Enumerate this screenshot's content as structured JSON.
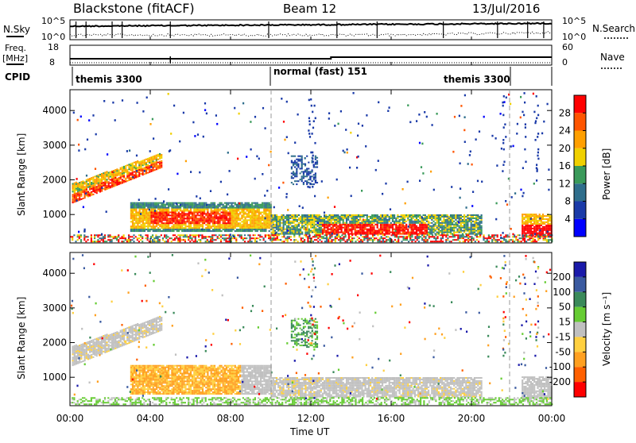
{
  "header": {
    "radar": "Blackstone (fitACF)",
    "beam": "Beam 12",
    "date": "13/Jul/2016"
  },
  "panels": {
    "nsky_label": "N.Sky",
    "nsearch_label": "N.Search",
    "nsky_ticks": [
      "10^5",
      "10^0"
    ],
    "nsearch_ticks": [
      "10^5",
      "10^0"
    ],
    "freq_label": "Freq.",
    "freq_unit": "[MHz]",
    "freq_ticks": [
      "18",
      "8"
    ],
    "nave_label": "Nave",
    "nave_ticks": [
      "60",
      "0"
    ],
    "cpid_label": "CPID",
    "cpid_segments": [
      "themis 3300",
      "normal (fast) 151",
      "themis 3300"
    ]
  },
  "colors": {
    "power": [
      "#0000ff",
      "#1a3aa8",
      "#2f6e8c",
      "#3a9a5a",
      "#f0d000",
      "#ff9f00",
      "#ff5500",
      "#ff0000"
    ],
    "velocity": [
      "#1a1aaa",
      "#3a5aa0",
      "#3a8a5a",
      "#66cc33",
      "#c0c0c0",
      "#ffd040",
      "#ffa020",
      "#ff6000",
      "#ff0000"
    ]
  },
  "chart_data": [
    {
      "type": "heatmap",
      "name": "power",
      "xlabel": "",
      "ylabel": "Slant Range [km]",
      "x_ticks": [
        "00:00",
        "04:00",
        "08:00",
        "12:00",
        "16:00",
        "20:00",
        "00:00"
      ],
      "y_ticks": [
        1000,
        2000,
        3000,
        4000
      ],
      "ylim": [
        180,
        4600
      ],
      "colorbar_label": "Power [dB]",
      "colorbar_ticks": [
        4,
        8,
        12,
        16,
        20,
        24,
        28
      ],
      "colorbar_range": [
        0,
        32
      ]
    },
    {
      "type": "heatmap",
      "name": "velocity",
      "xlabel": "Time UT",
      "ylabel": "Slant Range [km]",
      "x_ticks": [
        "00:00",
        "04:00",
        "08:00",
        "12:00",
        "16:00",
        "20:00",
        "00:00"
      ],
      "y_ticks": [
        1000,
        2000,
        3000,
        4000
      ],
      "ylim": [
        180,
        4600
      ],
      "colorbar_label": "Velocity [m s⁻¹]",
      "colorbar_ticks": [
        200,
        100,
        50,
        15,
        -15,
        -50,
        -100,
        -200
      ]
    }
  ]
}
